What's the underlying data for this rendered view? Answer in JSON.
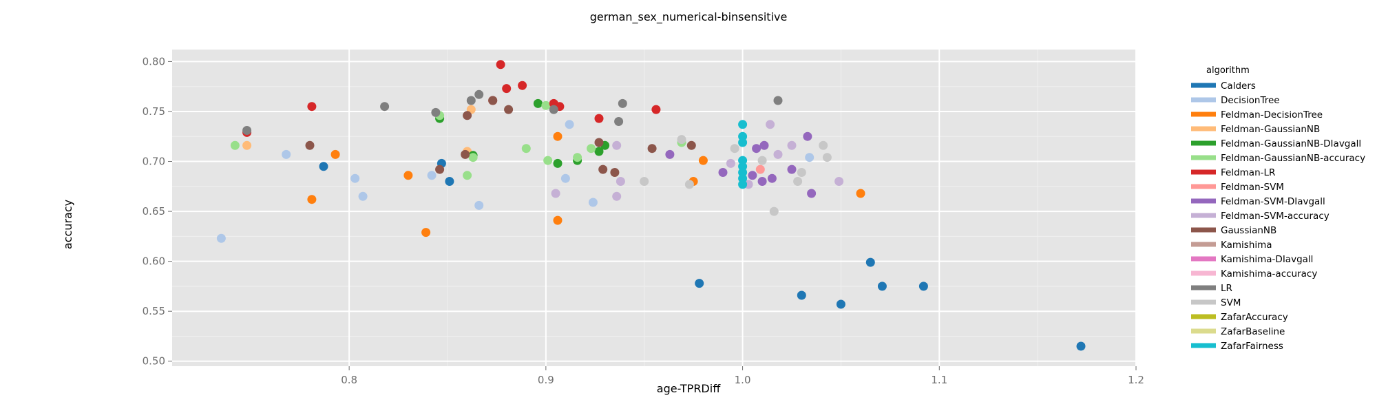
{
  "chart_data": {
    "type": "scatter",
    "title": "german_sex_numerical-binsensitive",
    "xlabel": "age-TPRDiff",
    "ylabel": "accuracy",
    "xlim": [
      0.71,
      1.2
    ],
    "ylim": [
      0.495,
      0.812
    ],
    "xticks": [
      0.8,
      0.9,
      1.0,
      1.1,
      1.2
    ],
    "xtick_labels": [
      "0.8",
      "0.9",
      "1.0",
      "1.1",
      "1.2"
    ],
    "yticks": [
      0.5,
      0.55,
      0.6,
      0.65,
      0.7,
      0.75,
      0.8
    ],
    "ytick_labels": [
      "0.50",
      "0.55",
      "0.60",
      "0.65",
      "0.70",
      "0.75",
      "0.80"
    ],
    "grid": true,
    "background": "#e5e5e5",
    "legend_title": "algorithm",
    "legend_position": "right",
    "series": [
      {
        "name": "Calders",
        "color": "#1f77b4",
        "points": [
          [
            0.787,
            0.695
          ],
          [
            0.847,
            0.698
          ],
          [
            0.851,
            0.68
          ],
          [
            0.978,
            0.578
          ],
          [
            1.03,
            0.566
          ],
          [
            1.05,
            0.557
          ],
          [
            1.065,
            0.599
          ],
          [
            1.071,
            0.575
          ],
          [
            1.092,
            0.575
          ],
          [
            1.172,
            0.515
          ]
        ]
      },
      {
        "name": "DecisionTree",
        "color": "#aec7e8",
        "points": [
          [
            0.735,
            0.623
          ],
          [
            0.768,
            0.707
          ],
          [
            0.803,
            0.683
          ],
          [
            0.807,
            0.665
          ],
          [
            0.842,
            0.686
          ],
          [
            0.866,
            0.656
          ],
          [
            0.91,
            0.683
          ],
          [
            0.912,
            0.737
          ],
          [
            0.924,
            0.659
          ],
          [
            1.034,
            0.704
          ]
        ]
      },
      {
        "name": "Feldman-DecisionTree",
        "color": "#ff7f0e",
        "points": [
          [
            0.781,
            0.662
          ],
          [
            0.793,
            0.707
          ],
          [
            0.83,
            0.686
          ],
          [
            0.839,
            0.629
          ],
          [
            0.906,
            0.725
          ],
          [
            0.906,
            0.641
          ],
          [
            0.975,
            0.68
          ],
          [
            0.98,
            0.701
          ],
          [
            1.06,
            0.668
          ]
        ]
      },
      {
        "name": "Feldman-GaussianNB",
        "color": "#ffbb78",
        "points": [
          [
            0.748,
            0.716
          ],
          [
            0.86,
            0.71
          ],
          [
            0.862,
            0.752
          ]
        ]
      },
      {
        "name": "Feldman-GaussianNB-DIavgall",
        "color": "#2ca02c",
        "points": [
          [
            0.846,
            0.743
          ],
          [
            0.863,
            0.706
          ],
          [
            0.896,
            0.758
          ],
          [
            0.906,
            0.698
          ],
          [
            0.916,
            0.701
          ],
          [
            0.927,
            0.71
          ],
          [
            0.93,
            0.716
          ]
        ]
      },
      {
        "name": "Feldman-GaussianNB-accuracy",
        "color": "#98df8a",
        "points": [
          [
            0.742,
            0.716
          ],
          [
            0.846,
            0.746
          ],
          [
            0.86,
            0.686
          ],
          [
            0.863,
            0.704
          ],
          [
            0.89,
            0.713
          ],
          [
            0.9,
            0.756
          ],
          [
            0.901,
            0.701
          ],
          [
            0.916,
            0.704
          ],
          [
            0.923,
            0.713
          ],
          [
            0.969,
            0.719
          ]
        ]
      },
      {
        "name": "Feldman-LR",
        "color": "#d62728",
        "points": [
          [
            0.748,
            0.729
          ],
          [
            0.781,
            0.755
          ],
          [
            0.873,
            0.761
          ],
          [
            0.877,
            0.797
          ],
          [
            0.88,
            0.773
          ],
          [
            0.888,
            0.776
          ],
          [
            0.904,
            0.758
          ],
          [
            0.907,
            0.755
          ],
          [
            0.927,
            0.743
          ],
          [
            0.956,
            0.752
          ]
        ]
      },
      {
        "name": "Feldman-SVM",
        "color": "#ff9896",
        "points": [
          [
            1.009,
            0.692
          ]
        ]
      },
      {
        "name": "Feldman-SVM-DIavgall",
        "color": "#9467bd",
        "points": [
          [
            0.963,
            0.707
          ],
          [
            0.99,
            0.689
          ],
          [
            1.005,
            0.686
          ],
          [
            1.007,
            0.713
          ],
          [
            1.01,
            0.68
          ],
          [
            1.011,
            0.716
          ],
          [
            1.015,
            0.683
          ],
          [
            1.025,
            0.692
          ],
          [
            1.033,
            0.725
          ],
          [
            1.035,
            0.668
          ]
        ]
      },
      {
        "name": "Feldman-SVM-accuracy",
        "color": "#c5b0d5",
        "points": [
          [
            0.905,
            0.668
          ],
          [
            0.936,
            0.716
          ],
          [
            0.936,
            0.665
          ],
          [
            0.938,
            0.68
          ],
          [
            0.994,
            0.698
          ],
          [
            1.003,
            0.677
          ],
          [
            1.014,
            0.737
          ],
          [
            1.018,
            0.707
          ],
          [
            1.025,
            0.716
          ],
          [
            1.049,
            0.68
          ]
        ]
      },
      {
        "name": "GaussianNB",
        "color": "#8c564b",
        "points": [
          [
            0.78,
            0.716
          ],
          [
            0.846,
            0.692
          ],
          [
            0.859,
            0.707
          ],
          [
            0.86,
            0.746
          ],
          [
            0.873,
            0.761
          ],
          [
            0.881,
            0.752
          ],
          [
            0.927,
            0.719
          ],
          [
            0.929,
            0.692
          ],
          [
            0.935,
            0.689
          ],
          [
            0.954,
            0.713
          ],
          [
            0.974,
            0.716
          ]
        ]
      },
      {
        "name": "Kamishima",
        "color": "#c49c94",
        "points": []
      },
      {
        "name": "Kamishima-DIavgall",
        "color": "#e377c2",
        "points": []
      },
      {
        "name": "Kamishima-accuracy",
        "color": "#f7b6d2",
        "points": []
      },
      {
        "name": "LR",
        "color": "#7f7f7f",
        "points": [
          [
            0.748,
            0.731
          ],
          [
            0.818,
            0.755
          ],
          [
            0.844,
            0.749
          ],
          [
            0.862,
            0.761
          ],
          [
            0.866,
            0.767
          ],
          [
            0.904,
            0.752
          ],
          [
            0.937,
            0.74
          ],
          [
            0.939,
            0.758
          ],
          [
            1.018,
            0.761
          ]
        ]
      },
      {
        "name": "SVM",
        "color": "#c7c7c7",
        "points": [
          [
            0.95,
            0.68
          ],
          [
            0.969,
            0.722
          ],
          [
            0.973,
            0.677
          ],
          [
            0.996,
            0.713
          ],
          [
            1.01,
            0.701
          ],
          [
            1.016,
            0.65
          ],
          [
            1.028,
            0.68
          ],
          [
            1.03,
            0.689
          ],
          [
            1.041,
            0.716
          ],
          [
            1.043,
            0.704
          ]
        ]
      },
      {
        "name": "ZafarAccuracy",
        "color": "#bcbd22",
        "points": []
      },
      {
        "name": "ZafarBaseline",
        "color": "#dbdb8d",
        "points": []
      },
      {
        "name": "ZafarFairness",
        "color": "#17becf",
        "points": [
          [
            1.0,
            0.737
          ],
          [
            1.0,
            0.725
          ],
          [
            1.0,
            0.719
          ],
          [
            1.0,
            0.701
          ],
          [
            1.0,
            0.695
          ],
          [
            1.0,
            0.689
          ],
          [
            1.0,
            0.683
          ],
          [
            1.0,
            0.677
          ]
        ]
      }
    ]
  }
}
